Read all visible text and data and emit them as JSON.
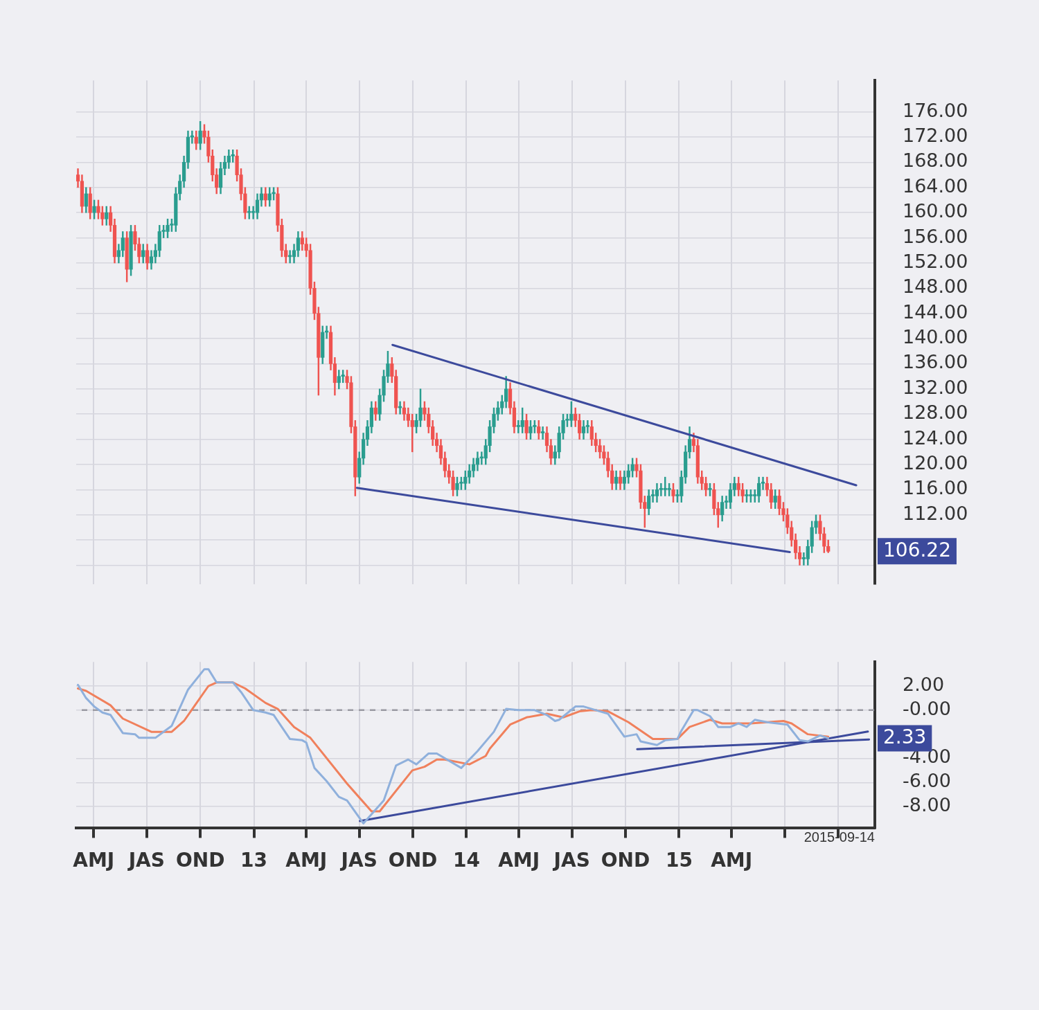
{
  "chart_data": [
    {
      "type": "candlestick",
      "x": [
        "2012-03-05",
        "2012-03-12",
        "2012-03-19",
        "2012-03-26",
        "2012-04-02",
        "2012-04-09",
        "2012-04-16",
        "2012-04-23",
        "2012-04-30",
        "2012-05-07",
        "2012-05-14",
        "2012-05-21",
        "2012-05-28",
        "2012-06-04",
        "2012-06-11",
        "2012-06-18",
        "2012-06-25",
        "2012-07-02",
        "2012-07-09",
        "2012-07-16",
        "2012-07-23",
        "2012-07-30",
        "2012-08-06",
        "2012-08-13",
        "2012-08-20",
        "2012-08-27",
        "2012-09-03",
        "2012-09-10",
        "2012-09-17",
        "2012-09-24",
        "2012-10-01",
        "2012-10-08",
        "2012-10-15",
        "2012-10-22",
        "2012-10-29",
        "2012-11-05",
        "2012-11-12",
        "2012-11-19",
        "2012-11-26",
        "2012-12-03",
        "2012-12-10",
        "2012-12-17",
        "2012-12-24",
        "2012-12-31",
        "2013-01-07",
        "2013-01-14",
        "2013-01-21",
        "2013-01-28",
        "2013-02-04",
        "2013-02-11",
        "2013-02-18",
        "2013-02-25",
        "2013-03-04",
        "2013-03-11",
        "2013-03-18",
        "2013-03-25",
        "2013-04-01",
        "2013-04-08",
        "2013-04-15",
        "2013-04-22",
        "2013-04-29",
        "2013-05-06",
        "2013-05-13",
        "2013-05-20",
        "2013-05-27",
        "2013-06-03",
        "2013-06-10",
        "2013-06-17",
        "2013-06-24",
        "2013-07-01",
        "2013-07-08",
        "2013-07-15",
        "2013-07-22",
        "2013-07-29",
        "2013-08-05",
        "2013-08-12",
        "2013-08-19",
        "2013-08-26",
        "2013-09-02",
        "2013-09-09",
        "2013-09-16",
        "2013-09-23",
        "2013-09-30",
        "2013-10-07",
        "2013-10-14",
        "2013-10-21",
        "2013-10-28",
        "2013-11-04",
        "2013-11-11",
        "2013-11-18",
        "2013-11-25",
        "2013-12-02",
        "2013-12-09",
        "2013-12-16",
        "2013-12-23",
        "2013-12-30",
        "2014-01-06",
        "2014-01-13",
        "2014-01-20",
        "2014-01-27",
        "2014-02-03",
        "2014-02-10",
        "2014-02-17",
        "2014-02-24",
        "2014-03-03",
        "2014-03-10",
        "2014-03-17",
        "2014-03-24",
        "2014-03-31",
        "2014-04-07",
        "2014-04-14",
        "2014-04-21",
        "2014-04-28",
        "2014-05-05",
        "2014-05-12",
        "2014-05-19",
        "2014-05-26",
        "2014-06-02",
        "2014-06-09",
        "2014-06-16",
        "2014-06-23",
        "2014-06-30",
        "2014-07-07",
        "2014-07-14",
        "2014-07-21",
        "2014-07-28",
        "2014-08-04",
        "2014-08-11",
        "2014-08-18",
        "2014-08-25",
        "2014-09-01",
        "2014-09-08",
        "2014-09-15",
        "2014-09-22",
        "2014-09-29",
        "2014-10-06",
        "2014-10-13",
        "2014-10-20",
        "2014-10-27",
        "2014-11-03",
        "2014-11-10",
        "2014-11-17",
        "2014-11-24",
        "2014-12-01",
        "2014-12-08",
        "2014-12-15",
        "2014-12-22",
        "2014-12-29",
        "2015-01-05",
        "2015-01-12",
        "2015-01-19",
        "2015-01-26",
        "2015-02-02",
        "2015-02-09",
        "2015-02-16",
        "2015-02-23",
        "2015-03-02",
        "2015-03-09",
        "2015-03-16",
        "2015-03-23",
        "2015-03-30",
        "2015-04-06",
        "2015-04-13",
        "2015-04-20",
        "2015-04-27",
        "2015-05-04",
        "2015-05-11",
        "2015-05-18",
        "2015-05-25",
        "2015-06-01",
        "2015-06-08",
        "2015-06-15",
        "2015-06-22",
        "2015-06-29",
        "2015-07-06",
        "2015-07-13",
        "2015-07-20",
        "2015-07-27",
        "2015-08-03",
        "2015-08-10",
        "2015-08-17",
        "2015-08-24",
        "2015-08-31",
        "2015-09-07",
        "2015-09-14"
      ],
      "ohlc": [
        [
          166,
          167,
          164,
          165
        ],
        [
          165,
          166,
          160,
          161
        ],
        [
          161,
          164,
          160,
          163
        ],
        [
          163,
          164,
          159,
          160
        ],
        [
          160,
          162,
          159,
          161
        ],
        [
          161,
          162,
          159,
          160
        ],
        [
          160,
          161,
          158,
          159
        ],
        [
          159,
          161,
          158,
          160
        ],
        [
          160,
          161,
          157,
          158
        ],
        [
          158,
          159,
          152,
          153
        ],
        [
          153,
          155,
          152,
          154
        ],
        [
          154,
          157,
          153,
          156
        ],
        [
          156,
          157,
          149,
          151
        ],
        [
          151,
          158,
          150,
          157
        ],
        [
          157,
          158,
          154,
          155
        ],
        [
          155,
          156,
          152,
          153
        ],
        [
          153,
          155,
          152,
          154
        ],
        [
          154,
          155,
          151,
          152
        ],
        [
          152,
          154,
          151,
          153
        ],
        [
          153,
          155,
          152,
          154
        ],
        [
          154,
          158,
          153,
          157
        ],
        [
          157,
          158,
          156,
          157
        ],
        [
          157,
          159,
          156,
          158
        ],
        [
          158,
          159,
          157,
          158
        ],
        [
          158,
          164,
          157,
          163
        ],
        [
          163,
          166,
          162,
          165
        ],
        [
          165,
          169,
          164,
          168
        ],
        [
          168,
          173,
          167,
          172
        ],
        [
          172,
          173,
          171,
          172
        ],
        [
          172,
          173,
          170,
          171
        ],
        [
          171,
          174.5,
          170,
          173
        ],
        [
          173,
          174,
          171,
          172
        ],
        [
          172,
          173,
          168,
          169
        ],
        [
          169,
          170,
          165,
          166
        ],
        [
          166,
          167,
          163,
          164
        ],
        [
          164,
          168,
          163,
          167
        ],
        [
          167,
          169,
          166,
          168
        ],
        [
          168,
          170,
          167,
          169
        ],
        [
          169,
          170,
          168,
          169
        ],
        [
          169,
          170,
          165,
          166
        ],
        [
          166,
          167,
          162,
          163
        ],
        [
          163,
          164,
          159,
          160
        ],
        [
          160,
          161,
          159,
          160
        ],
        [
          160,
          161,
          159,
          160
        ],
        [
          160,
          163,
          159,
          162
        ],
        [
          162,
          164,
          161,
          163
        ],
        [
          163,
          164,
          161,
          162
        ],
        [
          162,
          164,
          161,
          163
        ],
        [
          163,
          164,
          162,
          163
        ],
        [
          163,
          164,
          157,
          158
        ],
        [
          158,
          159,
          153,
          154
        ],
        [
          154,
          155,
          152,
          153
        ],
        [
          153,
          154,
          152,
          153
        ],
        [
          153,
          155,
          152,
          154
        ],
        [
          154,
          157,
          153,
          156
        ],
        [
          156,
          157,
          154,
          155
        ],
        [
          155,
          156,
          153,
          154
        ],
        [
          154,
          155,
          147,
          148
        ],
        [
          148,
          149,
          143,
          144
        ],
        [
          144,
          145,
          131,
          137
        ],
        [
          137,
          142,
          136,
          141
        ],
        [
          141,
          142,
          140,
          141
        ],
        [
          141,
          142,
          135,
          136
        ],
        [
          136,
          137,
          131,
          133
        ],
        [
          133,
          135,
          132,
          134
        ],
        [
          134,
          135,
          133,
          134
        ],
        [
          134,
          135,
          132,
          133
        ],
        [
          133,
          134,
          125,
          126
        ],
        [
          126,
          127,
          115,
          118
        ],
        [
          118,
          122,
          117,
          121
        ],
        [
          121,
          125,
          120,
          124
        ],
        [
          124,
          127,
          123,
          126
        ],
        [
          126,
          130,
          125,
          129
        ],
        [
          129,
          130,
          127,
          128
        ],
        [
          128,
          132,
          127,
          131
        ],
        [
          131,
          135,
          130,
          134
        ],
        [
          134,
          138,
          133,
          136
        ],
        [
          136,
          137,
          133,
          134
        ],
        [
          134,
          135,
          128,
          129
        ],
        [
          129,
          130,
          128,
          129
        ],
        [
          129,
          130,
          127,
          128
        ],
        [
          128,
          129,
          126,
          127
        ],
        [
          127,
          128,
          122,
          126
        ],
        [
          126,
          128,
          125,
          127
        ],
        [
          127,
          132,
          126,
          129
        ],
        [
          129,
          130,
          127,
          128
        ],
        [
          128,
          129,
          125,
          126
        ],
        [
          126,
          127,
          123,
          124
        ],
        [
          124,
          125,
          122,
          123
        ],
        [
          123,
          124,
          120,
          121
        ],
        [
          121,
          122,
          118,
          119
        ],
        [
          119,
          120,
          117,
          118
        ],
        [
          118,
          119,
          115,
          116
        ],
        [
          116,
          118,
          115,
          117
        ],
        [
          117,
          118,
          116,
          117
        ],
        [
          117,
          119,
          116,
          118
        ],
        [
          118,
          120,
          117,
          119
        ],
        [
          119,
          121,
          118,
          120
        ],
        [
          120,
          122,
          119,
          121
        ],
        [
          121,
          122,
          120,
          121
        ],
        [
          121,
          124,
          120,
          123
        ],
        [
          123,
          127,
          122,
          126
        ],
        [
          126,
          129,
          125,
          128
        ],
        [
          128,
          130,
          127,
          129
        ],
        [
          129,
          131,
          128,
          130
        ],
        [
          130,
          134,
          129,
          132
        ],
        [
          132,
          133,
          128,
          129
        ],
        [
          129,
          130,
          125,
          126
        ],
        [
          126,
          127,
          125,
          126
        ],
        [
          126,
          129,
          125,
          127
        ],
        [
          127,
          128,
          124,
          125
        ],
        [
          125,
          127,
          124,
          126
        ],
        [
          126,
          127,
          125,
          126
        ],
        [
          126,
          127,
          124,
          125
        ],
        [
          125,
          126,
          124,
          125
        ],
        [
          125,
          126,
          122,
          123
        ],
        [
          123,
          124,
          120,
          121
        ],
        [
          121,
          123,
          120,
          122
        ],
        [
          122,
          126,
          121,
          125
        ],
        [
          125,
          128,
          124,
          127
        ],
        [
          127,
          128,
          126,
          127
        ],
        [
          127,
          130,
          126,
          128
        ],
        [
          128,
          129,
          126,
          127
        ],
        [
          127,
          128,
          124,
          125
        ],
        [
          125,
          127,
          124,
          126
        ],
        [
          126,
          127,
          125,
          126
        ],
        [
          126,
          127,
          123,
          124
        ],
        [
          124,
          125,
          122,
          123
        ],
        [
          123,
          124,
          121,
          122
        ],
        [
          122,
          123,
          120,
          121
        ],
        [
          121,
          122,
          118,
          119
        ],
        [
          119,
          120,
          116,
          117
        ],
        [
          117,
          119,
          116,
          118
        ],
        [
          118,
          119,
          116,
          117
        ],
        [
          117,
          119,
          116,
          118
        ],
        [
          118,
          120,
          117,
          119
        ],
        [
          119,
          121,
          118,
          120
        ],
        [
          120,
          121,
          118,
          119
        ],
        [
          119,
          120,
          113,
          114
        ],
        [
          114,
          115,
          110,
          113
        ],
        [
          113,
          116,
          112,
          115
        ],
        [
          115,
          116,
          114,
          115
        ],
        [
          115,
          117,
          114,
          116
        ],
        [
          116,
          117,
          115,
          116
        ],
        [
          116,
          118,
          115,
          116
        ],
        [
          116,
          117,
          115,
          116
        ],
        [
          116,
          117,
          114,
          115
        ],
        [
          115,
          116,
          114,
          115
        ],
        [
          115,
          119,
          114,
          118
        ],
        [
          118,
          123,
          117,
          122
        ],
        [
          122,
          126,
          121,
          124
        ],
        [
          124,
          125,
          122,
          123
        ],
        [
          123,
          124,
          117,
          118
        ],
        [
          118,
          119,
          116,
          117
        ],
        [
          117,
          118,
          115,
          116
        ],
        [
          116,
          117,
          115,
          116
        ],
        [
          116,
          117,
          112,
          113
        ],
        [
          113,
          114,
          110,
          112
        ],
        [
          112,
          115,
          111,
          114
        ],
        [
          114,
          115,
          113,
          114
        ],
        [
          114,
          117,
          113,
          116
        ],
        [
          116,
          118,
          115,
          117
        ],
        [
          117,
          118,
          115,
          116
        ],
        [
          116,
          117,
          114,
          115
        ],
        [
          115,
          116,
          114,
          115
        ],
        [
          115,
          116,
          114,
          115
        ],
        [
          115,
          116,
          114,
          115
        ],
        [
          115,
          118,
          114,
          117
        ],
        [
          117,
          118,
          116,
          117
        ],
        [
          117,
          118,
          115,
          116
        ],
        [
          116,
          117,
          113,
          114
        ],
        [
          114,
          116,
          113,
          115
        ],
        [
          115,
          116,
          112,
          113
        ],
        [
          113,
          114,
          111,
          112
        ],
        [
          112,
          113,
          109,
          110
        ],
        [
          110,
          111,
          107,
          108
        ],
        [
          108,
          109,
          105,
          106
        ],
        [
          106,
          107,
          104,
          105
        ],
        [
          105,
          106,
          104,
          105
        ],
        [
          105,
          108,
          104,
          107
        ],
        [
          107,
          111,
          106,
          110
        ],
        [
          110,
          112,
          109,
          111
        ],
        [
          111,
          112,
          108,
          109
        ],
        [
          109,
          110,
          106,
          107
        ],
        [
          107,
          108,
          106,
          106.22
        ]
      ],
      "series": [
        {
          "type": "line",
          "color": "#3c4a9c",
          "x": [
            "2013-08-27",
            "2015-11-01"
          ],
          "values": [
            139,
            116.7
          ]
        },
        {
          "type": "line",
          "color": "#3c4a9c",
          "x": [
            "2013-06-27",
            "2015-07-10"
          ],
          "values": [
            116.3,
            106.1
          ]
        }
      ],
      "xlim": [
        "2012-03-02",
        "2015-12-03"
      ],
      "xticks": [
        {
          "value": "2012-04-01",
          "label": null
        },
        {
          "value": "2012-07-01",
          "label": null
        },
        {
          "value": "2012-10-01",
          "label": null
        },
        {
          "value": "2013-01-01",
          "label": null
        },
        {
          "value": "2013-04-01",
          "label": null
        },
        {
          "value": "2013-07-01",
          "label": null
        },
        {
          "value": "2013-10-01",
          "label": null
        },
        {
          "value": "2014-01-01",
          "label": null
        },
        {
          "value": "2014-04-01",
          "label": null
        },
        {
          "value": "2014-07-01",
          "label": null
        },
        {
          "value": "2014-10-01",
          "label": null
        },
        {
          "value": "2015-01-01",
          "label": null
        },
        {
          "value": "2015-04-01",
          "label": null
        },
        {
          "value": "2015-07-01",
          "label": null
        },
        {
          "value": "2015-10-01",
          "label": null
        }
      ],
      "ylim": [
        101,
        181
      ],
      "yticks": [
        {
          "value": 104,
          "label": null
        },
        {
          "value": 108,
          "label": null
        },
        {
          "value": 112,
          "label": "112.00"
        },
        {
          "value": 116,
          "label": "116.00"
        },
        {
          "value": 120,
          "label": "120.00"
        },
        {
          "value": 124,
          "label": "124.00"
        },
        {
          "value": 128,
          "label": "128.00"
        },
        {
          "value": 132,
          "label": "132.00"
        },
        {
          "value": 136,
          "label": "136.00"
        },
        {
          "value": 140,
          "label": "140.00"
        },
        {
          "value": 144,
          "label": "144.00"
        },
        {
          "value": 148,
          "label": "148.00"
        },
        {
          "value": 152,
          "label": "152.00"
        },
        {
          "value": 156,
          "label": "156.00"
        },
        {
          "value": 160,
          "label": "160.00"
        },
        {
          "value": 164,
          "label": "164.00"
        },
        {
          "value": 168,
          "label": "168.00"
        },
        {
          "value": 172,
          "label": "172.00"
        },
        {
          "value": 176,
          "label": "176.00"
        }
      ],
      "tick_labels": "y",
      "grid": true,
      "legend": false,
      "annotations": [
        "106.22"
      ]
    },
    {
      "type": "line",
      "series": [
        {
          "color": "#8fb0dc",
          "x": [
            "2012-03-05",
            "2012-03-19",
            "2012-04-02",
            "2012-04-16",
            "2012-04-30",
            "2012-05-21",
            "2012-06-11",
            "2012-06-18",
            "2012-07-16",
            "2012-08-13",
            "2012-09-10",
            "2012-10-08",
            "2012-10-15",
            "2012-10-29",
            "2012-11-26",
            "2012-12-10",
            "2012-12-31",
            "2013-01-21",
            "2013-02-04",
            "2013-03-04",
            "2013-03-25",
            "2013-04-01",
            "2013-04-15",
            "2013-05-06",
            "2013-05-27",
            "2013-06-10",
            "2013-07-08",
            "2013-08-12",
            "2013-09-02",
            "2013-09-23",
            "2013-10-07",
            "2013-10-28",
            "2013-11-11",
            "2013-12-23",
            "2014-01-20",
            "2014-02-17",
            "2014-03-10",
            "2014-03-31",
            "2014-04-28",
            "2014-05-19",
            "2014-06-02",
            "2014-06-09",
            "2014-07-07",
            "2014-07-21",
            "2014-08-11",
            "2014-09-01",
            "2014-09-29",
            "2014-10-20",
            "2014-10-27",
            "2014-11-24",
            "2014-12-08",
            "2014-12-29",
            "2015-01-05",
            "2015-01-26",
            "2015-02-02",
            "2015-02-23",
            "2015-03-09",
            "2015-03-30",
            "2015-04-13",
            "2015-04-27",
            "2015-05-11",
            "2015-06-01",
            "2015-07-06",
            "2015-07-27",
            "2015-08-10",
            "2015-08-31",
            "2015-09-14"
          ],
          "values": [
            2.1,
            1.0,
            0.3,
            -0.2,
            -0.4,
            -1.9,
            -2.0,
            -2.3,
            -2.3,
            -1.3,
            1.7,
            3.4,
            3.4,
            2.3,
            2.3,
            1.5,
            0.0,
            -0.2,
            -0.4,
            -2.4,
            -2.5,
            -2.7,
            -4.8,
            -5.9,
            -7.2,
            -7.5,
            -9.4,
            -7.5,
            -4.6,
            -4.1,
            -4.5,
            -3.6,
            -3.6,
            -4.8,
            -3.4,
            -1.8,
            0.1,
            0.0,
            0.0,
            -0.4,
            -0.9,
            -0.8,
            0.3,
            0.3,
            0.0,
            -0.3,
            -2.2,
            -2.0,
            -2.6,
            -2.9,
            -2.5,
            -2.4,
            -1.7,
            0.0,
            0.0,
            -0.5,
            -1.4,
            -1.4,
            -1.1,
            -1.4,
            -0.8,
            -1.0,
            -1.2,
            -2.5,
            -2.6,
            -2.1,
            -2.33
          ]
        },
        {
          "color": "#f0805c",
          "x": [
            "2012-03-05",
            "2012-03-19",
            "2012-04-30",
            "2012-05-21",
            "2012-07-09",
            "2012-08-13",
            "2012-09-03",
            "2012-10-15",
            "2012-10-29",
            "2012-11-26",
            "2012-12-17",
            "2013-01-21",
            "2013-02-11",
            "2013-03-11",
            "2013-04-08",
            "2013-06-10",
            "2013-07-22",
            "2013-08-05",
            "2013-09-30",
            "2013-10-21",
            "2013-11-11",
            "2013-11-25",
            "2014-01-06",
            "2014-02-03",
            "2014-02-10",
            "2014-03-17",
            "2014-04-14",
            "2014-05-19",
            "2014-06-16",
            "2014-07-14",
            "2014-08-04",
            "2014-09-01",
            "2014-10-06",
            "2014-11-17",
            "2014-12-29",
            "2015-01-19",
            "2015-02-23",
            "2015-03-16",
            "2015-05-04",
            "2015-06-29",
            "2015-07-13",
            "2015-08-10",
            "2015-09-14"
          ],
          "values": [
            1.8,
            1.6,
            0.4,
            -0.7,
            -1.8,
            -1.8,
            -0.9,
            2.0,
            2.3,
            2.3,
            1.8,
            0.6,
            0.1,
            -1.4,
            -2.3,
            -6.1,
            -8.4,
            -8.4,
            -5.0,
            -4.7,
            -4.1,
            -4.1,
            -4.5,
            -3.8,
            -3.2,
            -1.2,
            -0.6,
            -0.3,
            -0.6,
            -0.1,
            0.0,
            -0.1,
            -1.0,
            -2.4,
            -2.4,
            -1.4,
            -0.8,
            -1.1,
            -1.1,
            -0.9,
            -1.1,
            -2.0,
            -2.2
          ]
        },
        {
          "color": "#3c4a9c",
          "x": [
            "2013-07-02",
            "2015-11-21"
          ],
          "values": [
            -9.2,
            -1.78
          ]
        },
        {
          "color": "#3c4a9c",
          "x": [
            "2014-10-21",
            "2015-11-23"
          ],
          "values": [
            -3.24,
            -2.44
          ]
        }
      ],
      "xlim": [
        "2012-03-02",
        "2015-12-03"
      ],
      "xticks": [
        {
          "value": "2012-04-01",
          "label": "AMJ"
        },
        {
          "value": "2012-07-01",
          "label": "JAS"
        },
        {
          "value": "2012-10-01",
          "label": "OND"
        },
        {
          "value": "2013-01-01",
          "label": "13"
        },
        {
          "value": "2013-04-01",
          "label": "AMJ"
        },
        {
          "value": "2013-07-01",
          "label": "JAS"
        },
        {
          "value": "2013-10-01",
          "label": "OND"
        },
        {
          "value": "2014-01-01",
          "label": "14"
        },
        {
          "value": "2014-04-01",
          "label": "AMJ"
        },
        {
          "value": "2014-07-01",
          "label": "JAS"
        },
        {
          "value": "2014-10-01",
          "label": "OND"
        },
        {
          "value": "2015-01-01",
          "label": "15"
        },
        {
          "value": "2015-04-01",
          "label": "AMJ"
        },
        {
          "value": "2015-07-01",
          "label": null
        },
        {
          "value": "2015-10-01",
          "label": null
        }
      ],
      "ylim": [
        -9.8,
        4
      ],
      "yticks": [
        {
          "value": 2,
          "label": "2.00"
        },
        {
          "value": 0,
          "label": "-0.00"
        },
        {
          "value": -4,
          "label": "-4.00"
        },
        {
          "value": -6,
          "label": "-6.00"
        },
        {
          "value": -8,
          "label": "-8.00"
        }
      ],
      "grid": true,
      "legend": false,
      "ref_lines": [
        {
          "axis": "y",
          "value": 0,
          "color": "#9a9aa2",
          "line_style": "dashed"
        }
      ],
      "annotations": [
        "2.33",
        "2015-09-14"
      ]
    }
  ]
}
